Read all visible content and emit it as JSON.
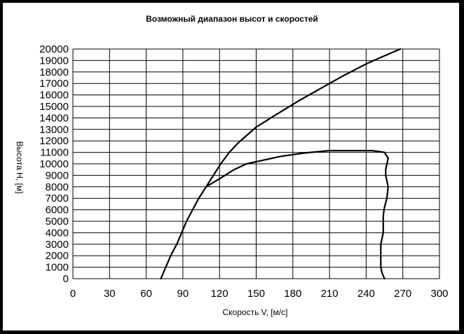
{
  "chart_data": {
    "type": "line",
    "title": "Возможный диапазон высот и скоростей",
    "xlabel": "Скорость V, [м/с]",
    "ylabel": "Высота H, [м]",
    "xlim": [
      0,
      300
    ],
    "ylim": [
      0,
      20000
    ],
    "x_ticks": [
      0,
      30,
      60,
      90,
      120,
      150,
      180,
      210,
      240,
      270,
      300
    ],
    "y_ticks": [
      0,
      1000,
      2000,
      3000,
      4000,
      5000,
      6000,
      7000,
      8000,
      9000,
      10000,
      11000,
      12000,
      13000,
      14000,
      15000,
      16000,
      17000,
      18000,
      19000,
      20000
    ],
    "grid": true,
    "series": [
      {
        "points": [
          [
            72,
            0
          ],
          [
            76,
            1000
          ],
          [
            80,
            2000
          ],
          [
            85,
            3000
          ],
          [
            89,
            4000
          ],
          [
            93,
            5000
          ],
          [
            98,
            6000
          ],
          [
            103,
            7000
          ],
          [
            109,
            8000
          ],
          [
            115,
            9000
          ],
          [
            121,
            10000
          ],
          [
            128,
            11000
          ],
          [
            135,
            11800
          ],
          [
            150,
            13200
          ],
          [
            165,
            14200
          ],
          [
            185,
            15500
          ],
          [
            200,
            16400
          ],
          [
            220,
            17600
          ],
          [
            240,
            18700
          ],
          [
            255,
            19400
          ],
          [
            268,
            20000
          ]
        ]
      },
      {
        "points": [
          [
            109,
            8000
          ],
          [
            120,
            8700
          ],
          [
            132,
            9500
          ],
          [
            142,
            10000
          ],
          [
            155,
            10300
          ],
          [
            170,
            10650
          ],
          [
            190,
            10950
          ],
          [
            210,
            11150
          ],
          [
            245,
            11150
          ],
          [
            255,
            11000
          ],
          [
            258,
            10500
          ],
          [
            256,
            9500
          ],
          [
            256,
            9000
          ],
          [
            258,
            8000
          ],
          [
            257,
            7000
          ],
          [
            255,
            6200
          ],
          [
            254,
            5500
          ],
          [
            254,
            4000
          ],
          [
            252,
            3000
          ],
          [
            252,
            2000
          ],
          [
            252,
            1000
          ],
          [
            253,
            500
          ],
          [
            255,
            0
          ]
        ]
      }
    ]
  }
}
